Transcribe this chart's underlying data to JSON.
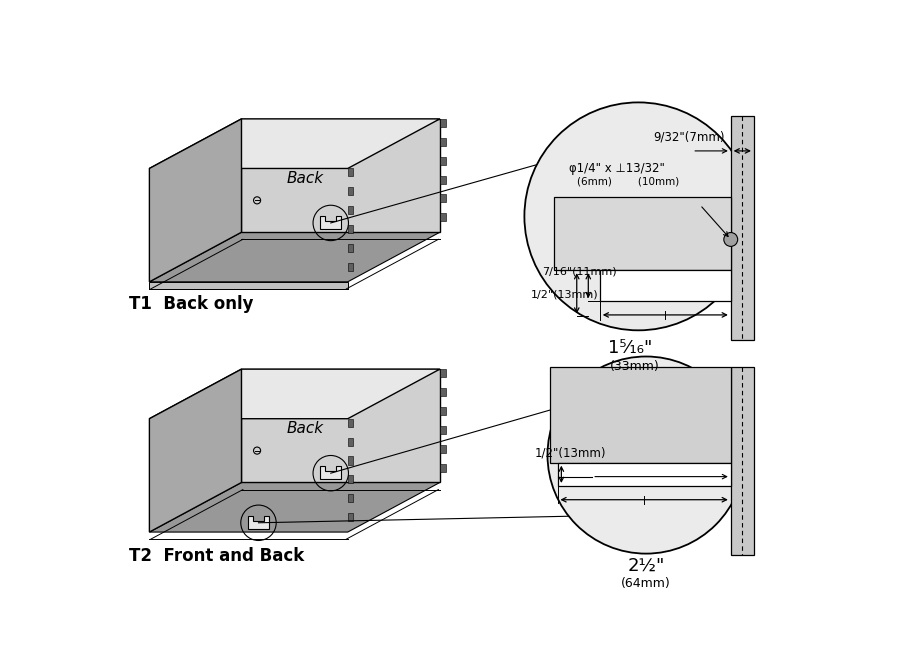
{
  "bg_color": "#ffffff",
  "face_light": "#e8e8e8",
  "face_mid": "#d0d0d0",
  "face_dark": "#a8a8a8",
  "face_bottom": "#989898",
  "finger_color": "#606060",
  "line_color": "#000000",
  "t1_label": "T1  Back only",
  "t2_label": "T2  Front and Back",
  "back_label": "Back",
  "dim1_a": "9/32\"(7mm)",
  "dim1_b": "φ1/4\" x ⊥13/32\"",
  "dim1_c": "(6mm)        (10mm)",
  "dim1_d": "7/16\"(11mm)",
  "dim1_e": "1/2\"(13mm)",
  "dim1_f": "1⁵⁄₁₆\"",
  "dim1_g": "(33mm)",
  "dim2_a": "1/2\"(13mm)",
  "dim2_b": "2½\"",
  "dim2_c": "(64mm)"
}
